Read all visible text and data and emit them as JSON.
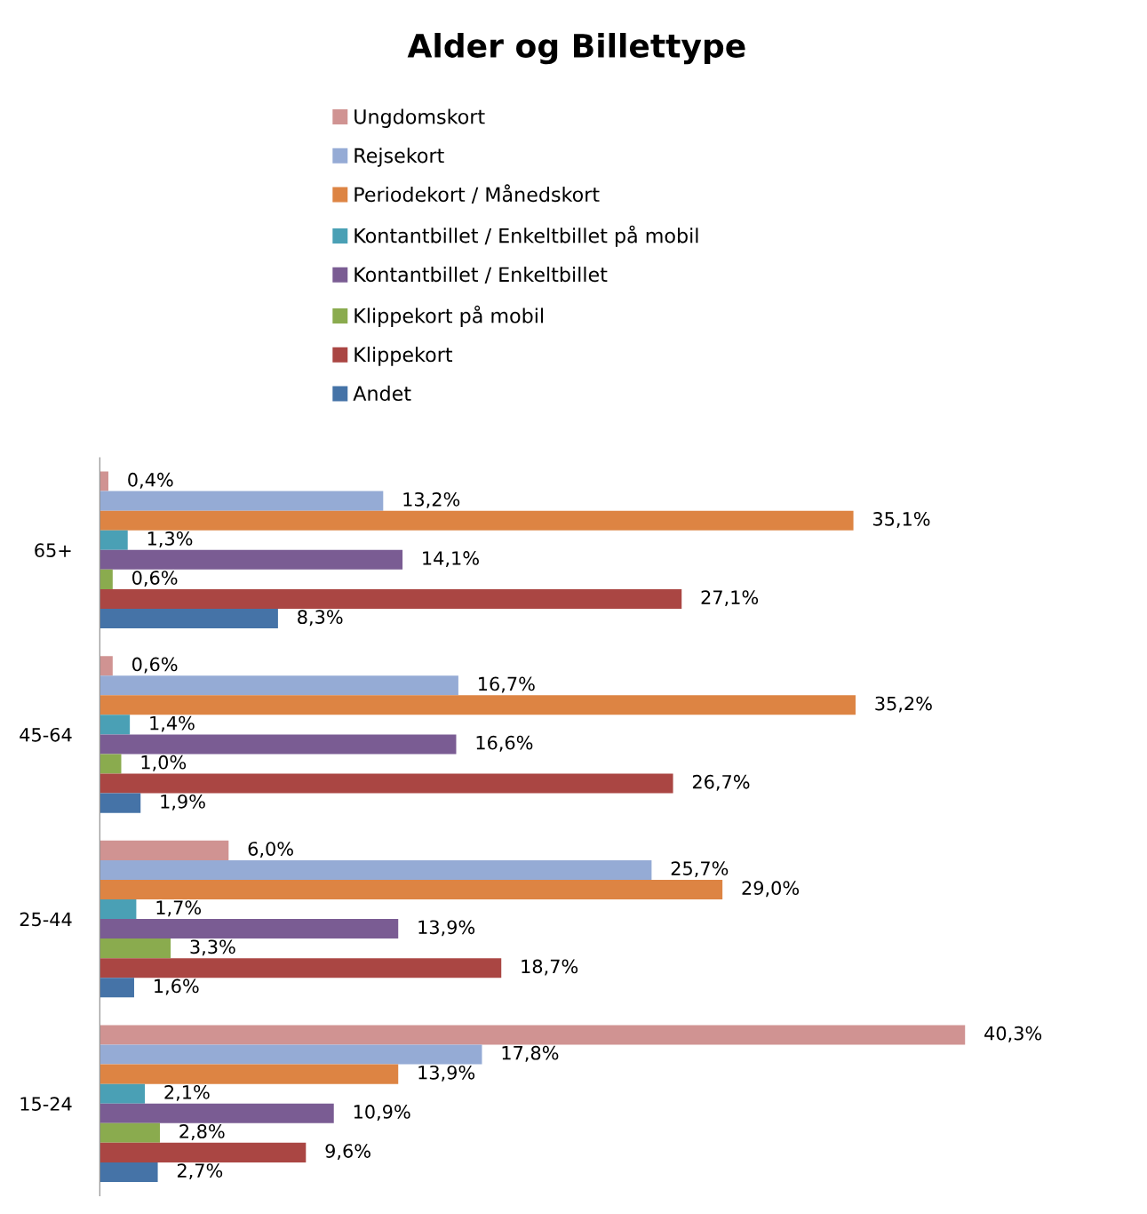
{
  "chart_data": {
    "type": "bar",
    "orientation": "horizontal",
    "title": "Alder og Billettype",
    "categories": [
      "65+",
      "45-64",
      "25-44",
      "15-24"
    ],
    "legend": "top",
    "grid": false,
    "series": [
      {
        "name": "Ungdomskort",
        "color": "#d09392",
        "values": [
          0.4,
          0.6,
          6.0,
          40.3
        ],
        "value_labels": [
          "0,4%",
          "0,6%",
          "6,0%",
          "40,3%"
        ]
      },
      {
        "name": "Rejsekort",
        "color": "#95abd5",
        "values": [
          13.2,
          16.7,
          25.7,
          17.8
        ],
        "value_labels": [
          "13,2%",
          "16,7%",
          "25,7%",
          "17,8%"
        ]
      },
      {
        "name": "Periodekort / Månedskort",
        "color": "#dd8443",
        "values": [
          35.1,
          35.2,
          29.0,
          13.9
        ],
        "value_labels": [
          "35,1%",
          "35,2%",
          "29,0%",
          "13,9%"
        ]
      },
      {
        "name": "Kontantbillet / Enkeltbillet på mobil",
        "color": "#4aa0b5",
        "values": [
          1.3,
          1.4,
          1.7,
          2.1
        ],
        "value_labels": [
          "1,3%",
          "1,4%",
          "1,7%",
          "2,1%"
        ]
      },
      {
        "name": "Kontantbillet / Enkeltbillet",
        "color": "#7a5c93",
        "values": [
          14.1,
          16.6,
          13.9,
          10.9
        ],
        "value_labels": [
          "14,1%",
          "16,6%",
          "13,9%",
          "10,9%"
        ]
      },
      {
        "name": "Klippekort på mobil",
        "color": "#8aab4e",
        "values": [
          0.6,
          1.0,
          3.3,
          2.8
        ],
        "value_labels": [
          "0,6%",
          "1,0%",
          "3,3%",
          "2,8%"
        ]
      },
      {
        "name": "Klippekort",
        "color": "#aa4643",
        "values": [
          27.1,
          26.7,
          18.7,
          9.6
        ],
        "value_labels": [
          "27,1%",
          "26,7%",
          "18,7%",
          "9,6%"
        ]
      },
      {
        "name": "Andet",
        "color": "#4573a7",
        "values": [
          8.3,
          1.9,
          1.6,
          2.7
        ],
        "value_labels": [
          "8,3%",
          "1,9%",
          "1,6%",
          "2,7%"
        ]
      }
    ]
  }
}
